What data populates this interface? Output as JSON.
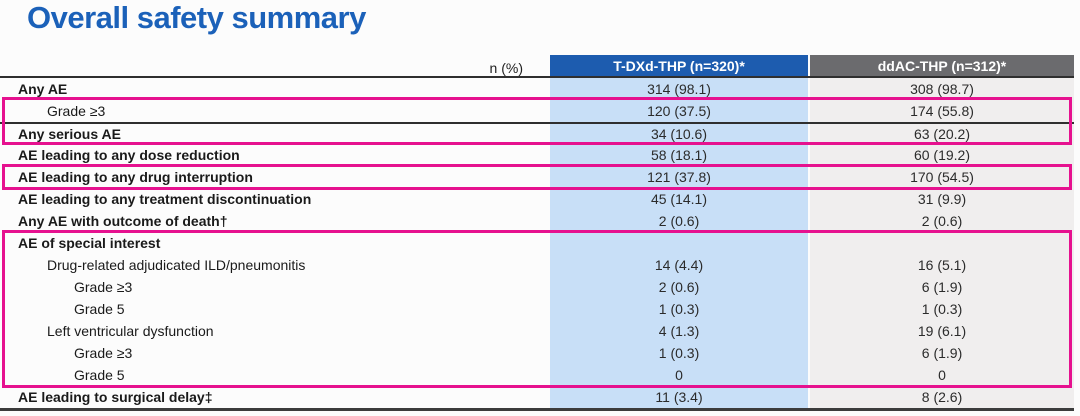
{
  "title": "Overall safety summary",
  "colors": {
    "title_blue": "#1b61b9",
    "header_blue": "#1d5caf",
    "header_gray": "#6b6b6e",
    "tdxd_column_bg": "#c8dff7",
    "ddac_column_bg": "#f0eeee",
    "highlight_pink": "#e6118f"
  },
  "table": {
    "corner_label": "n (%)",
    "columns": [
      {
        "label": "T-DXd-THP (n=320)*"
      },
      {
        "label": "ddAC-THP (n=312)*"
      }
    ],
    "rows": [
      {
        "label": "Any AE",
        "indent": 0,
        "bold": true,
        "tdxd": "314 (98.1)",
        "ddac": "308 (98.7)"
      },
      {
        "label": "Grade ≥3",
        "indent": 1,
        "bold": false,
        "tdxd": "120 (37.5)",
        "ddac": "174 (55.8)"
      },
      {
        "label": "Any serious AE",
        "indent": 0,
        "bold": true,
        "tdxd": "34 (10.6)",
        "ddac": "63 (20.2)"
      },
      {
        "label": "AE leading to any dose reduction",
        "indent": 0,
        "bold": true,
        "tdxd": "58 (18.1)",
        "ddac": "60 (19.2)"
      },
      {
        "label": "AE leading to any drug interruption",
        "indent": 0,
        "bold": true,
        "tdxd": "121 (37.8)",
        "ddac": "170 (54.5)"
      },
      {
        "label": "AE leading to any treatment discontinuation",
        "indent": 0,
        "bold": true,
        "tdxd": "45 (14.1)",
        "ddac": "31 (9.9)"
      },
      {
        "label": "Any AE with outcome of death†",
        "indent": 0,
        "bold": true,
        "tdxd": "2 (0.6)",
        "ddac": "2 (0.6)"
      },
      {
        "label": "AE of special interest",
        "indent": 0,
        "bold": true,
        "tdxd": "",
        "ddac": ""
      },
      {
        "label": "Drug-related adjudicated ILD/pneumonitis",
        "indent": 1,
        "bold": false,
        "tdxd": "14 (4.4)",
        "ddac": "16 (5.1)"
      },
      {
        "label": "Grade ≥3",
        "indent": 2,
        "bold": false,
        "tdxd": "2 (0.6)",
        "ddac": "6 (1.9)"
      },
      {
        "label": "Grade 5",
        "indent": 2,
        "bold": false,
        "tdxd": "1 (0.3)",
        "ddac": "1 (0.3)"
      },
      {
        "label": "Left ventricular dysfunction",
        "indent": 1,
        "bold": false,
        "tdxd": "4 (1.3)",
        "ddac": "19 (6.1)"
      },
      {
        "label": "Grade ≥3",
        "indent": 2,
        "bold": false,
        "tdxd": "1 (0.3)",
        "ddac": "6 (1.9)"
      },
      {
        "label": "Grade 5",
        "indent": 2,
        "bold": false,
        "tdxd": "0",
        "ddac": "0"
      },
      {
        "label": "AE leading to surgical delay‡",
        "indent": 0,
        "bold": true,
        "tdxd": "11 (3.4)",
        "ddac": "8 (2.6)"
      }
    ],
    "highlight_boxes": [
      {
        "covers_rows": [
          "Grade ≥3",
          "Any serious AE"
        ],
        "color": "#e6118f"
      },
      {
        "covers_rows": [
          "AE leading to any drug interruption"
        ],
        "color": "#e6118f"
      },
      {
        "covers_rows": [
          "AE of special interest",
          "Drug-related adjudicated ILD/pneumonitis",
          "Grade ≥3",
          "Grade 5",
          "Left ventricular dysfunction",
          "Grade ≥3",
          "Grade 5"
        ],
        "color": "#e6118f"
      }
    ]
  }
}
